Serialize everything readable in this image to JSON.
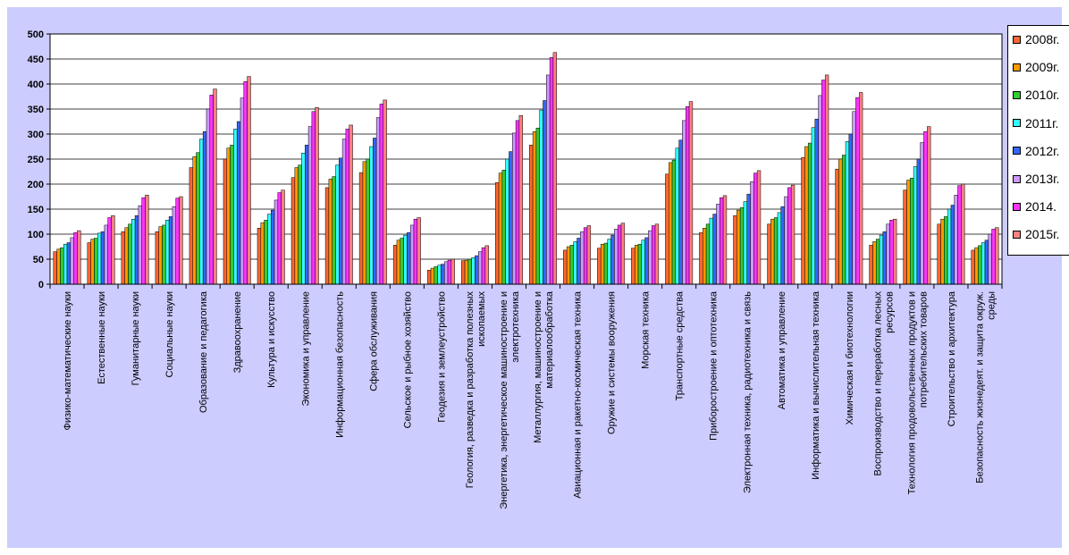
{
  "chart_data": {
    "type": "bar",
    "title": "",
    "xlabel": "",
    "ylabel": "",
    "ylim": [
      0,
      500
    ],
    "yticks": [
      0,
      50,
      100,
      150,
      200,
      250,
      300,
      350,
      400,
      450,
      500
    ],
    "grid": true,
    "legend_position": "right",
    "categories": [
      [
        "Физико-математические науки"
      ],
      [
        "Естественные науки"
      ],
      [
        "Гуманитарные науки"
      ],
      [
        "Социальные науки"
      ],
      [
        "Образование и педагогика"
      ],
      [
        "Здравоохранение"
      ],
      [
        "Культура и искусство"
      ],
      [
        "Экономика и управление"
      ],
      [
        "Информационная безопасность"
      ],
      [
        "Сфера обслуживания"
      ],
      [
        "Сельское и рыбное хозяйство"
      ],
      [
        "Геодезия и землеустройство"
      ],
      [
        "Геология, разведка и разработка полезных",
        "ископаемых"
      ],
      [
        "Энергетика, энергетическое машиностроение и",
        "электротехника"
      ],
      [
        "Металлургия, машиностроение и",
        "материалообработка"
      ],
      [
        "Авиационная и ракетно-космическая техника"
      ],
      [
        "Оружие и системы вооружения"
      ],
      [
        "Морская техника"
      ],
      [
        "Транспортные средства"
      ],
      [
        "Приборостроение и оптотехника"
      ],
      [
        "Электронная техника, радиотехника и связь"
      ],
      [
        "Автоматика и управление"
      ],
      [
        "Информатика и вычислительная техника"
      ],
      [
        "Химическая и биотехнологии"
      ],
      [
        "Воспроизводство и переработка лесных",
        "ресурсов"
      ],
      [
        "Технология продовольственных продуктов и",
        "потребительских товаров"
      ],
      [
        "Строительство и архитектура"
      ],
      [
        "Безопасность жизнедеят. и защита окруж.",
        "среды"
      ]
    ],
    "series": [
      {
        "name": "2008г.",
        "color": "#ff6633",
        "values": [
          65,
          83,
          105,
          105,
          233,
          250,
          112,
          213,
          193,
          223,
          78,
          28,
          47,
          203,
          278,
          68,
          72,
          72,
          220,
          103,
          137,
          120,
          253,
          230,
          78,
          188,
          120,
          68
        ]
      },
      {
        "name": "2009г.",
        "color": "#ff9900",
        "values": [
          70,
          90,
          113,
          115,
          255,
          272,
          123,
          233,
          210,
          245,
          88,
          32,
          48,
          222,
          305,
          75,
          80,
          78,
          243,
          112,
          148,
          130,
          275,
          250,
          85,
          208,
          130,
          73
        ]
      },
      {
        "name": "2010г.",
        "color": "#33cc33",
        "values": [
          73,
          92,
          120,
          118,
          263,
          278,
          128,
          238,
          215,
          250,
          92,
          35,
          50,
          228,
          312,
          78,
          82,
          80,
          248,
          120,
          153,
          133,
          282,
          258,
          90,
          212,
          135,
          77
        ]
      },
      {
        "name": "2011г.",
        "color": "#33ffff",
        "values": [
          80,
          102,
          130,
          128,
          290,
          310,
          140,
          262,
          238,
          275,
          98,
          38,
          53,
          250,
          348,
          85,
          90,
          88,
          272,
          132,
          165,
          143,
          313,
          285,
          98,
          235,
          150,
          83
        ]
      },
      {
        "name": "2012г.",
        "color": "#3366ff",
        "values": [
          83,
          105,
          137,
          135,
          305,
          325,
          148,
          278,
          252,
          292,
          103,
          40,
          57,
          265,
          367,
          92,
          98,
          93,
          288,
          140,
          180,
          155,
          330,
          300,
          105,
          250,
          158,
          88
        ]
      },
      {
        "name": "2013г.",
        "color": "#cc99ff",
        "values": [
          93,
          118,
          157,
          155,
          350,
          372,
          168,
          315,
          290,
          333,
          118,
          45,
          65,
          302,
          418,
          105,
          110,
          107,
          327,
          160,
          205,
          175,
          377,
          345,
          120,
          283,
          178,
          100
        ]
      },
      {
        "name": "2014.",
        "color": "#ff33ff",
        "values": [
          103,
          133,
          173,
          172,
          378,
          405,
          183,
          345,
          310,
          360,
          130,
          48,
          73,
          327,
          453,
          113,
          118,
          117,
          355,
          173,
          222,
          193,
          408,
          373,
          128,
          305,
          197,
          110
        ]
      },
      {
        "name": "2015г.",
        "color": "#ff8080",
        "values": [
          107,
          137,
          178,
          175,
          390,
          415,
          188,
          353,
          318,
          368,
          133,
          50,
          77,
          337,
          463,
          117,
          122,
          120,
          365,
          177,
          227,
          198,
          418,
          383,
          130,
          315,
          200,
          113
        ]
      }
    ]
  }
}
